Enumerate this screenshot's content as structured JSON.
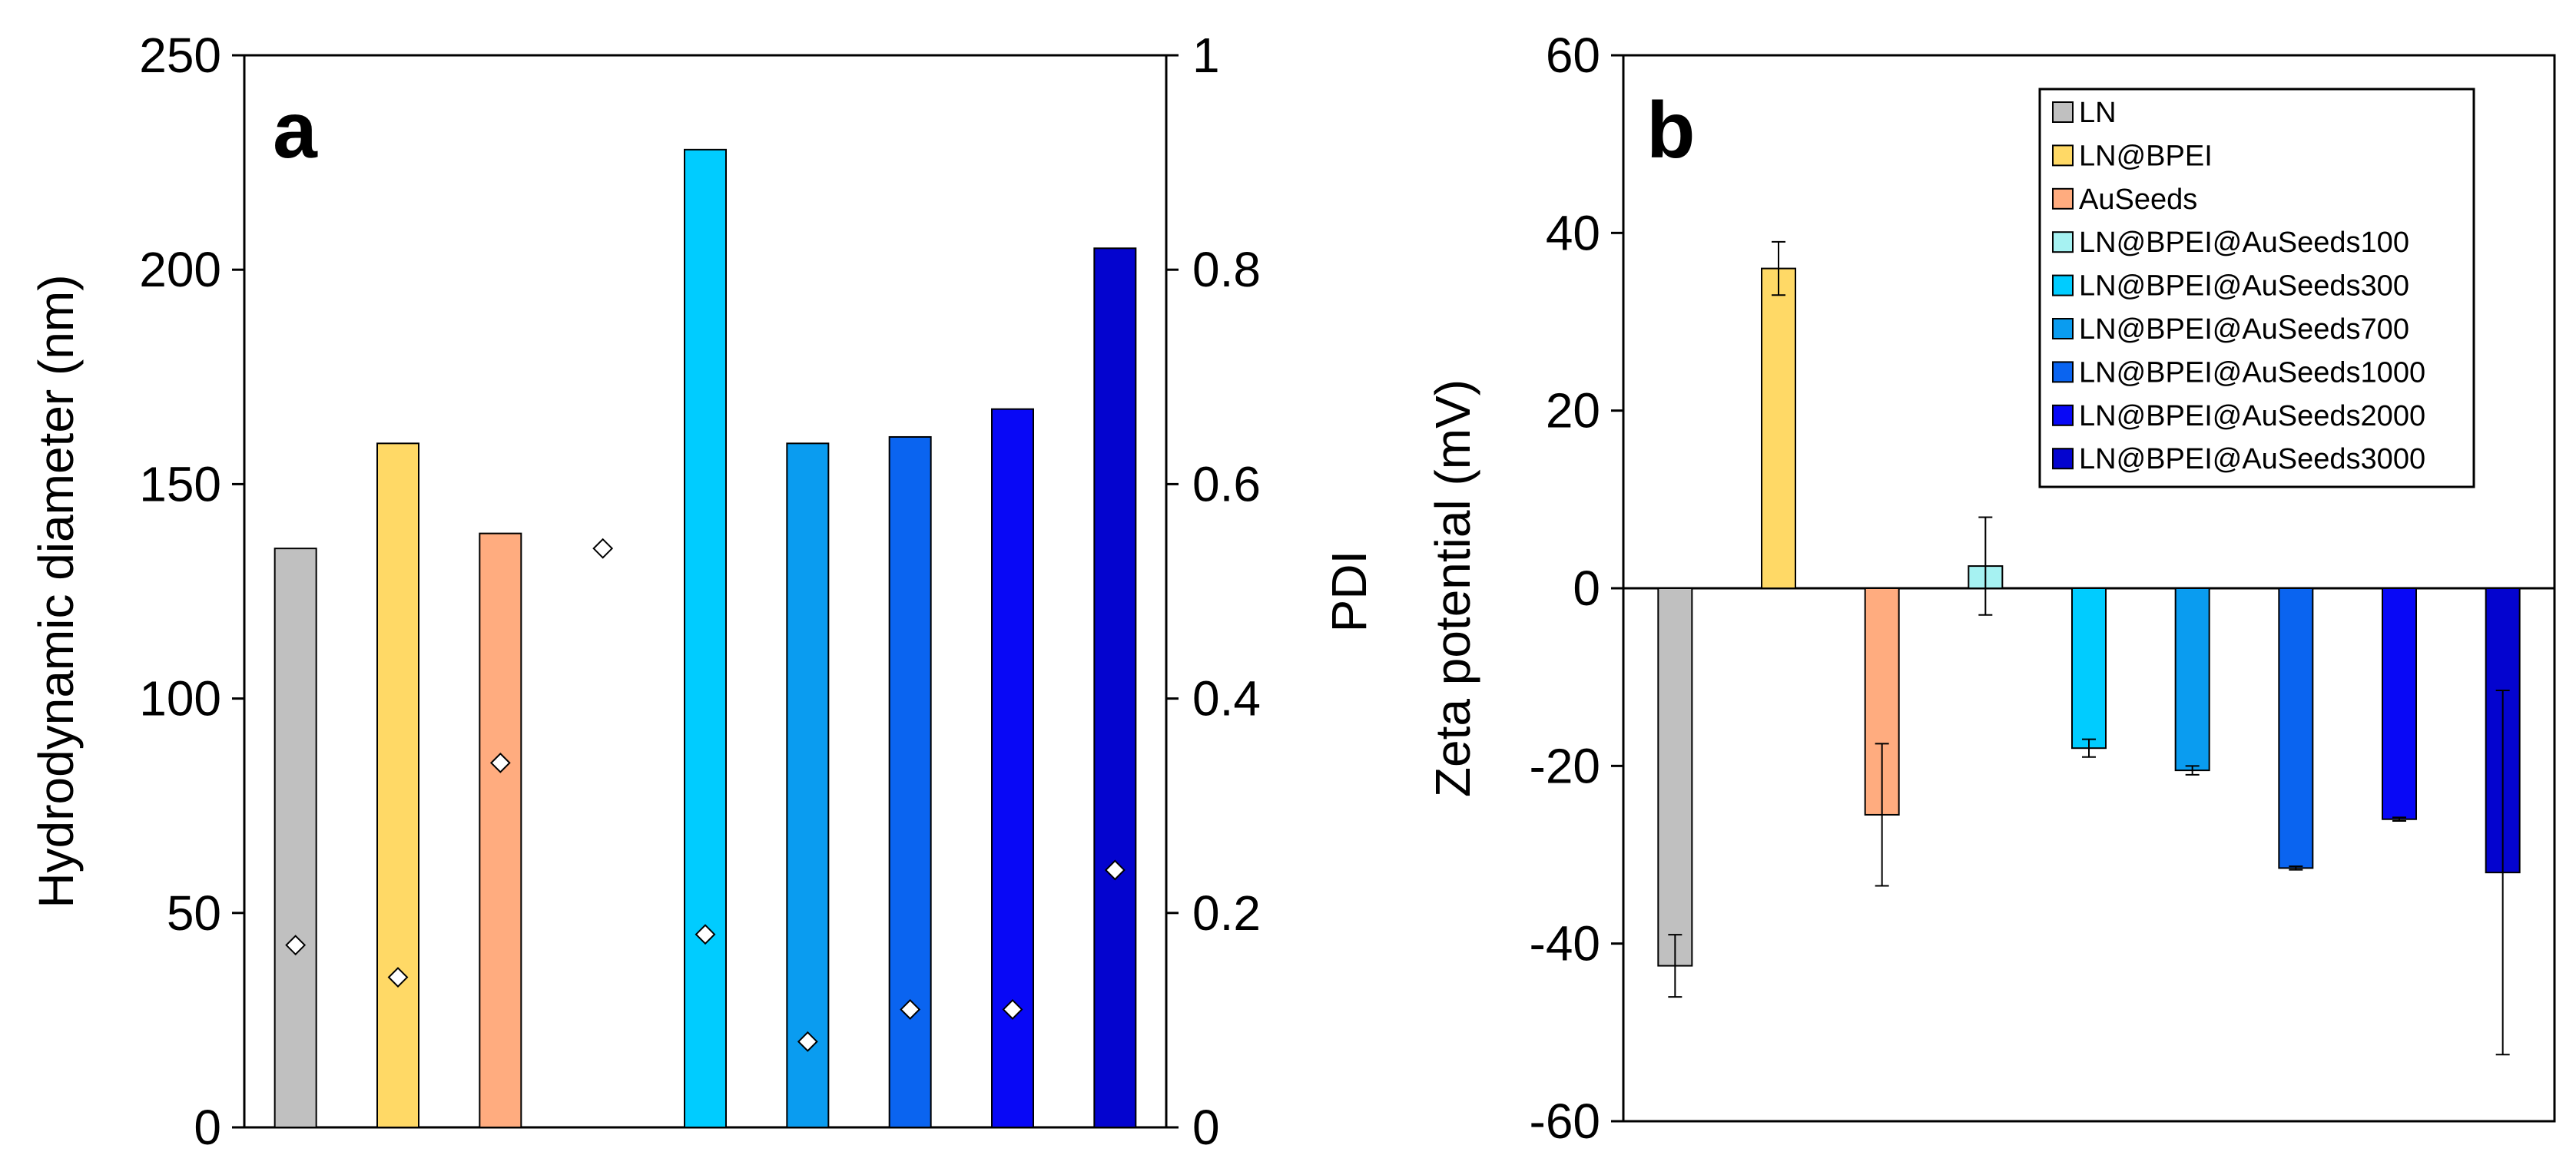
{
  "chart_data": [
    {
      "type": "bar",
      "panel": "a",
      "ylabel": "Hydrodynamic  diameter  (nm)",
      "y2label": "PDI",
      "ylim": [
        0,
        250
      ],
      "y2lim": [
        0,
        1
      ],
      "yticks": [
        "0",
        "50",
        "100",
        "150",
        "200",
        "250"
      ],
      "y2ticks": [
        "0",
        "0.2",
        "0.4",
        "0.6",
        "0.8",
        "1"
      ],
      "categories": [
        "LN",
        "LN@BPEI",
        "AuSeeds",
        "LN@BPEI@AuSeeds100",
        "LN@BPEI@AuSeeds300",
        "LN@BPEI@AuSeeds700",
        "LN@BPEI@AuSeeds1000",
        "LN@BPEI@AuSeeds2000",
        "LN@BPEI@AuSeeds3000"
      ],
      "series": [
        {
          "name": "Hydrodynamic diameter (nm)",
          "axis": "left",
          "values": [
            135,
            159.5,
            138.5,
            null,
            228,
            159.5,
            161,
            167.5,
            205
          ]
        },
        {
          "name": "PDI",
          "axis": "right",
          "marker": "diamond",
          "values": [
            0.17,
            0.14,
            0.34,
            0.54,
            0.18,
            0.08,
            0.11,
            0.11,
            0.24
          ]
        }
      ]
    },
    {
      "type": "bar",
      "panel": "b",
      "ylabel": "Zeta  potential  (mV)",
      "ylim": [
        -60,
        60
      ],
      "yticks": [
        "-60",
        "-40",
        "-20",
        "0",
        "20",
        "40",
        "60"
      ],
      "legend_position": "top-right",
      "categories": [
        "LN",
        "LN@BPEI",
        "AuSeeds",
        "LN@BPEI@AuSeeds100",
        "LN@BPEI@AuSeeds300",
        "LN@BPEI@AuSeeds700",
        "LN@BPEI@AuSeeds1000",
        "LN@BPEI@AuSeeds2000",
        "LN@BPEI@AuSeeds3000"
      ],
      "series": [
        {
          "name": "Zeta potential (mV)",
          "values": [
            -42.5,
            36,
            -25.5,
            2.5,
            -18,
            -20.5,
            -31.5,
            -26,
            -32
          ],
          "errors": [
            3.5,
            3,
            8,
            5.5,
            1,
            0.5,
            0.2,
            0.2,
            20.5
          ]
        }
      ]
    }
  ],
  "colors": [
    "#c0c0c0",
    "#ffd966",
    "#ffac7f",
    "#a6f2f2",
    "#00ccff",
    "#0a9cf0",
    "#0a64f0",
    "#0808f6",
    "#0404cf"
  ]
}
